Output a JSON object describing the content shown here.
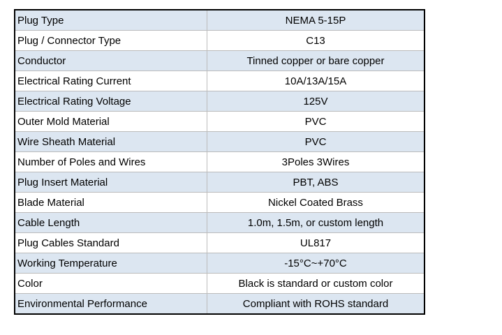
{
  "table": {
    "rows": [
      [
        "Plug Type",
        "NEMA 5-15P"
      ],
      [
        "Plug / Connector Type",
        "C13"
      ],
      [
        "Conductor",
        "Tinned copper or bare copper"
      ],
      [
        "Electrical Rating Current",
        "10A/13A/15A"
      ],
      [
        "Electrical Rating Voltage",
        "125V"
      ],
      [
        "Outer Mold Material",
        "PVC"
      ],
      [
        "Wire Sheath Material",
        "PVC"
      ],
      [
        "Number of Poles and Wires",
        "3Poles 3Wires"
      ],
      [
        "Plug Insert Material",
        "PBT, ABS"
      ],
      [
        "Blade Material",
        "Nickel Coated Brass"
      ],
      [
        "Cable Length",
        "1.0m, 1.5m, or custom length"
      ],
      [
        "Plug Cables Standard",
        "UL817"
      ],
      [
        "Working Temperature",
        "-15°C~+70°C"
      ],
      [
        "Color",
        "Black is standard or custom color"
      ],
      [
        "Environmental Performance",
        "Compliant with ROHS standard"
      ]
    ]
  }
}
